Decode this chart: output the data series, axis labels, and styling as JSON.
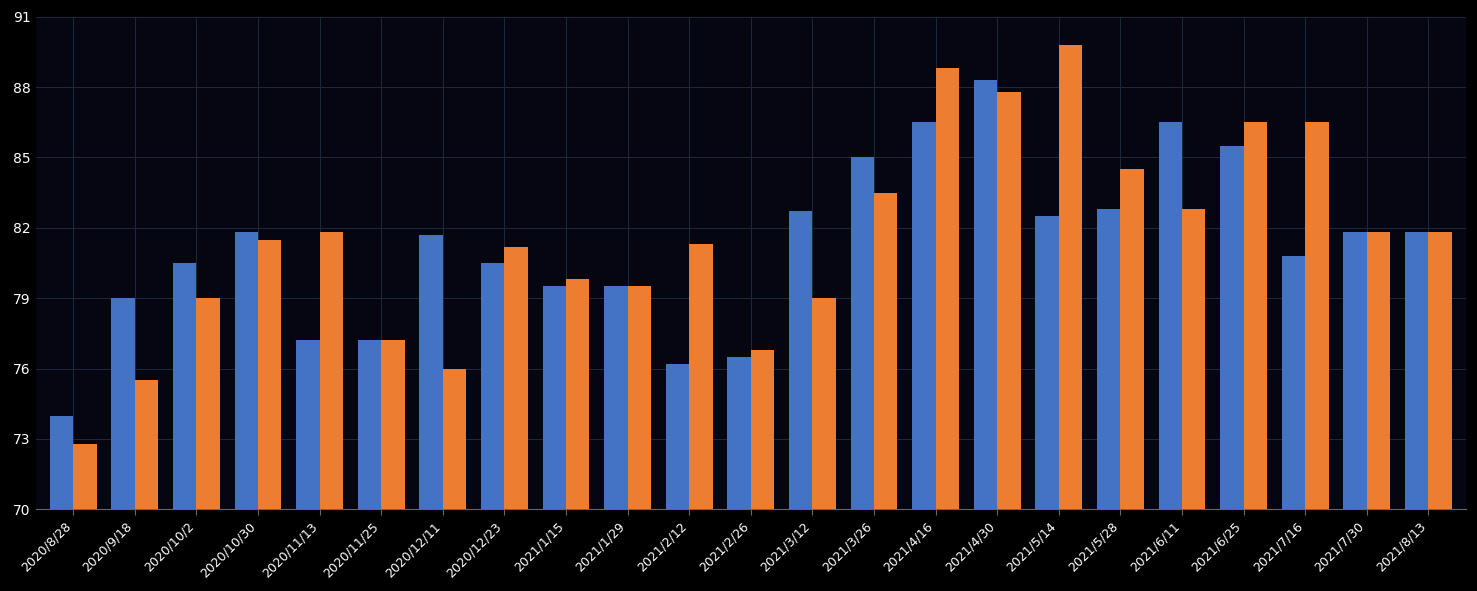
{
  "categories": [
    "2020/8/28",
    "2020/9/18",
    "2020/10/2",
    "2020/10/30",
    "2020/11/13",
    "2020/11/25",
    "2020/12/11",
    "2020/12/23",
    "2021/1/15",
    "2021/1/29",
    "2021/2/12",
    "2021/2/26",
    "2021/3/12",
    "2021/3/26",
    "2021/4/16",
    "2021/4/30",
    "2021/5/14",
    "2021/5/28",
    "2021/6/11",
    "2021/6/25",
    "2021/7/16",
    "2021/7/30",
    "2021/8/13"
  ],
  "blue_values": [
    74.0,
    79.0,
    80.5,
    81.8,
    77.2,
    77.2,
    81.7,
    80.5,
    79.5,
    79.5,
    76.2,
    76.5,
    82.7,
    85.0,
    86.5,
    88.3,
    82.5,
    82.8,
    86.5,
    85.5,
    80.8,
    81.8,
    81.8
  ],
  "orange_values": [
    72.8,
    75.5,
    79.0,
    81.5,
    81.8,
    77.2,
    76.0,
    81.2,
    79.8,
    79.5,
    81.3,
    76.8,
    79.0,
    83.5,
    88.8,
    87.8,
    89.8,
    84.5,
    82.8,
    86.5,
    86.5,
    81.8,
    81.8
  ],
  "bar_color_blue": "#4472C4",
  "bar_color_orange": "#ED7D31",
  "background_color": "#000000",
  "plot_background": "#060612",
  "grid_color": "#1E2A3A",
  "text_color": "#FFFFFF",
  "ylim_min": 70,
  "ylim_max": 91,
  "yticks": [
    70,
    73,
    76,
    79,
    82,
    85,
    88,
    91
  ]
}
